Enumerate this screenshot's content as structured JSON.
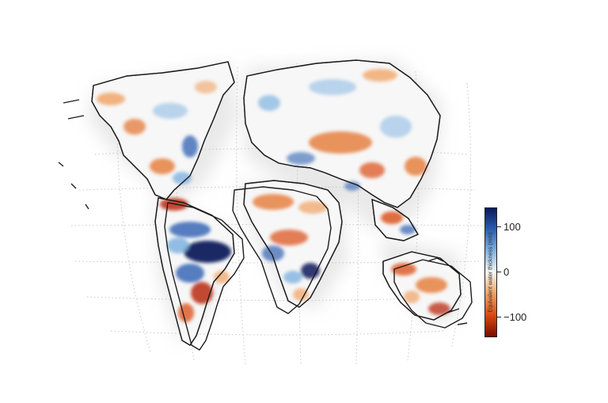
{
  "colorbar": {
    "title": "Equivalent water thickness (mm)",
    "ticks": [
      "100",
      "0",
      "−100"
    ],
    "colors": [
      "#0a1a5c",
      "#2c5fb0",
      "#7fb2e0",
      "#f7f7f7",
      "#f0a060",
      "#d94a10",
      "#7a0a00"
    ]
  }
}
